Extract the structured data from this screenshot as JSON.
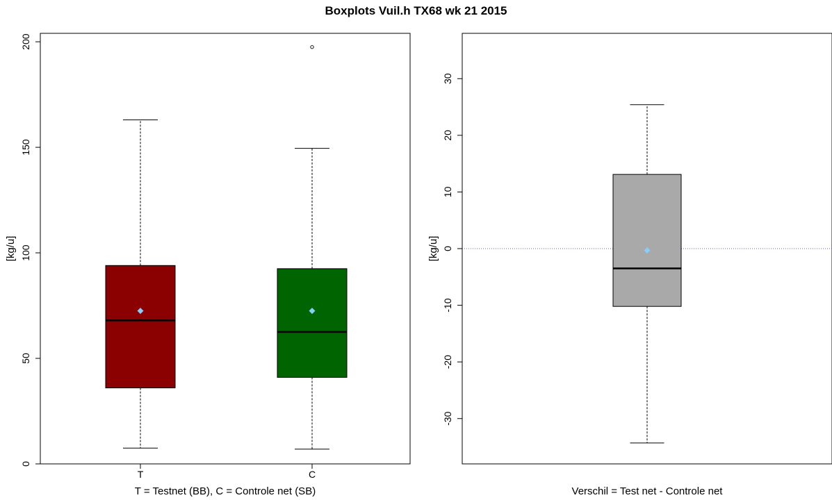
{
  "title": "Boxplots Vuil.h TX68 wk 21 2015",
  "chart_data": [
    {
      "type": "boxplot",
      "title": "",
      "xlabel": "T = Testnet (BB), C = Controle net (SB)",
      "ylabel": "[kg/u]",
      "ylim": [
        0,
        204
      ],
      "yticks": [
        0,
        50,
        100,
        150,
        200
      ],
      "categories": [
        "T",
        "C"
      ],
      "series": [
        {
          "category": "T",
          "whisker_low": 7.5,
          "q1": 36,
          "median": 68,
          "q3": 94,
          "whisker_high": 163,
          "mean": 72.5,
          "outliers": [],
          "color": "#8b0000"
        },
        {
          "category": "C",
          "whisker_low": 7,
          "q1": 41,
          "median": 62.5,
          "q3": 92.5,
          "whisker_high": 149.5,
          "mean": 72.5,
          "outliers": [
            197.5
          ],
          "color": "#006400"
        }
      ],
      "mean_marker_color": "#87cefa"
    },
    {
      "type": "boxplot",
      "title": "",
      "xlabel": "Verschil = Test net - Controle net",
      "ylabel": "[kg/u]",
      "ylim": [
        -38,
        38
      ],
      "yticks": [
        -30,
        -20,
        -10,
        0,
        10,
        20,
        30
      ],
      "reference_line": 0,
      "reference_line_color": "#6666cc",
      "series": [
        {
          "whisker_low": -34.3,
          "q1": -10.2,
          "median": -3.5,
          "q3": 13.1,
          "whisker_high": 25.4,
          "mean": -0.3,
          "outliers": [],
          "color": "#a9a9a9"
        }
      ],
      "mean_marker_color": "#87cefa"
    }
  ]
}
